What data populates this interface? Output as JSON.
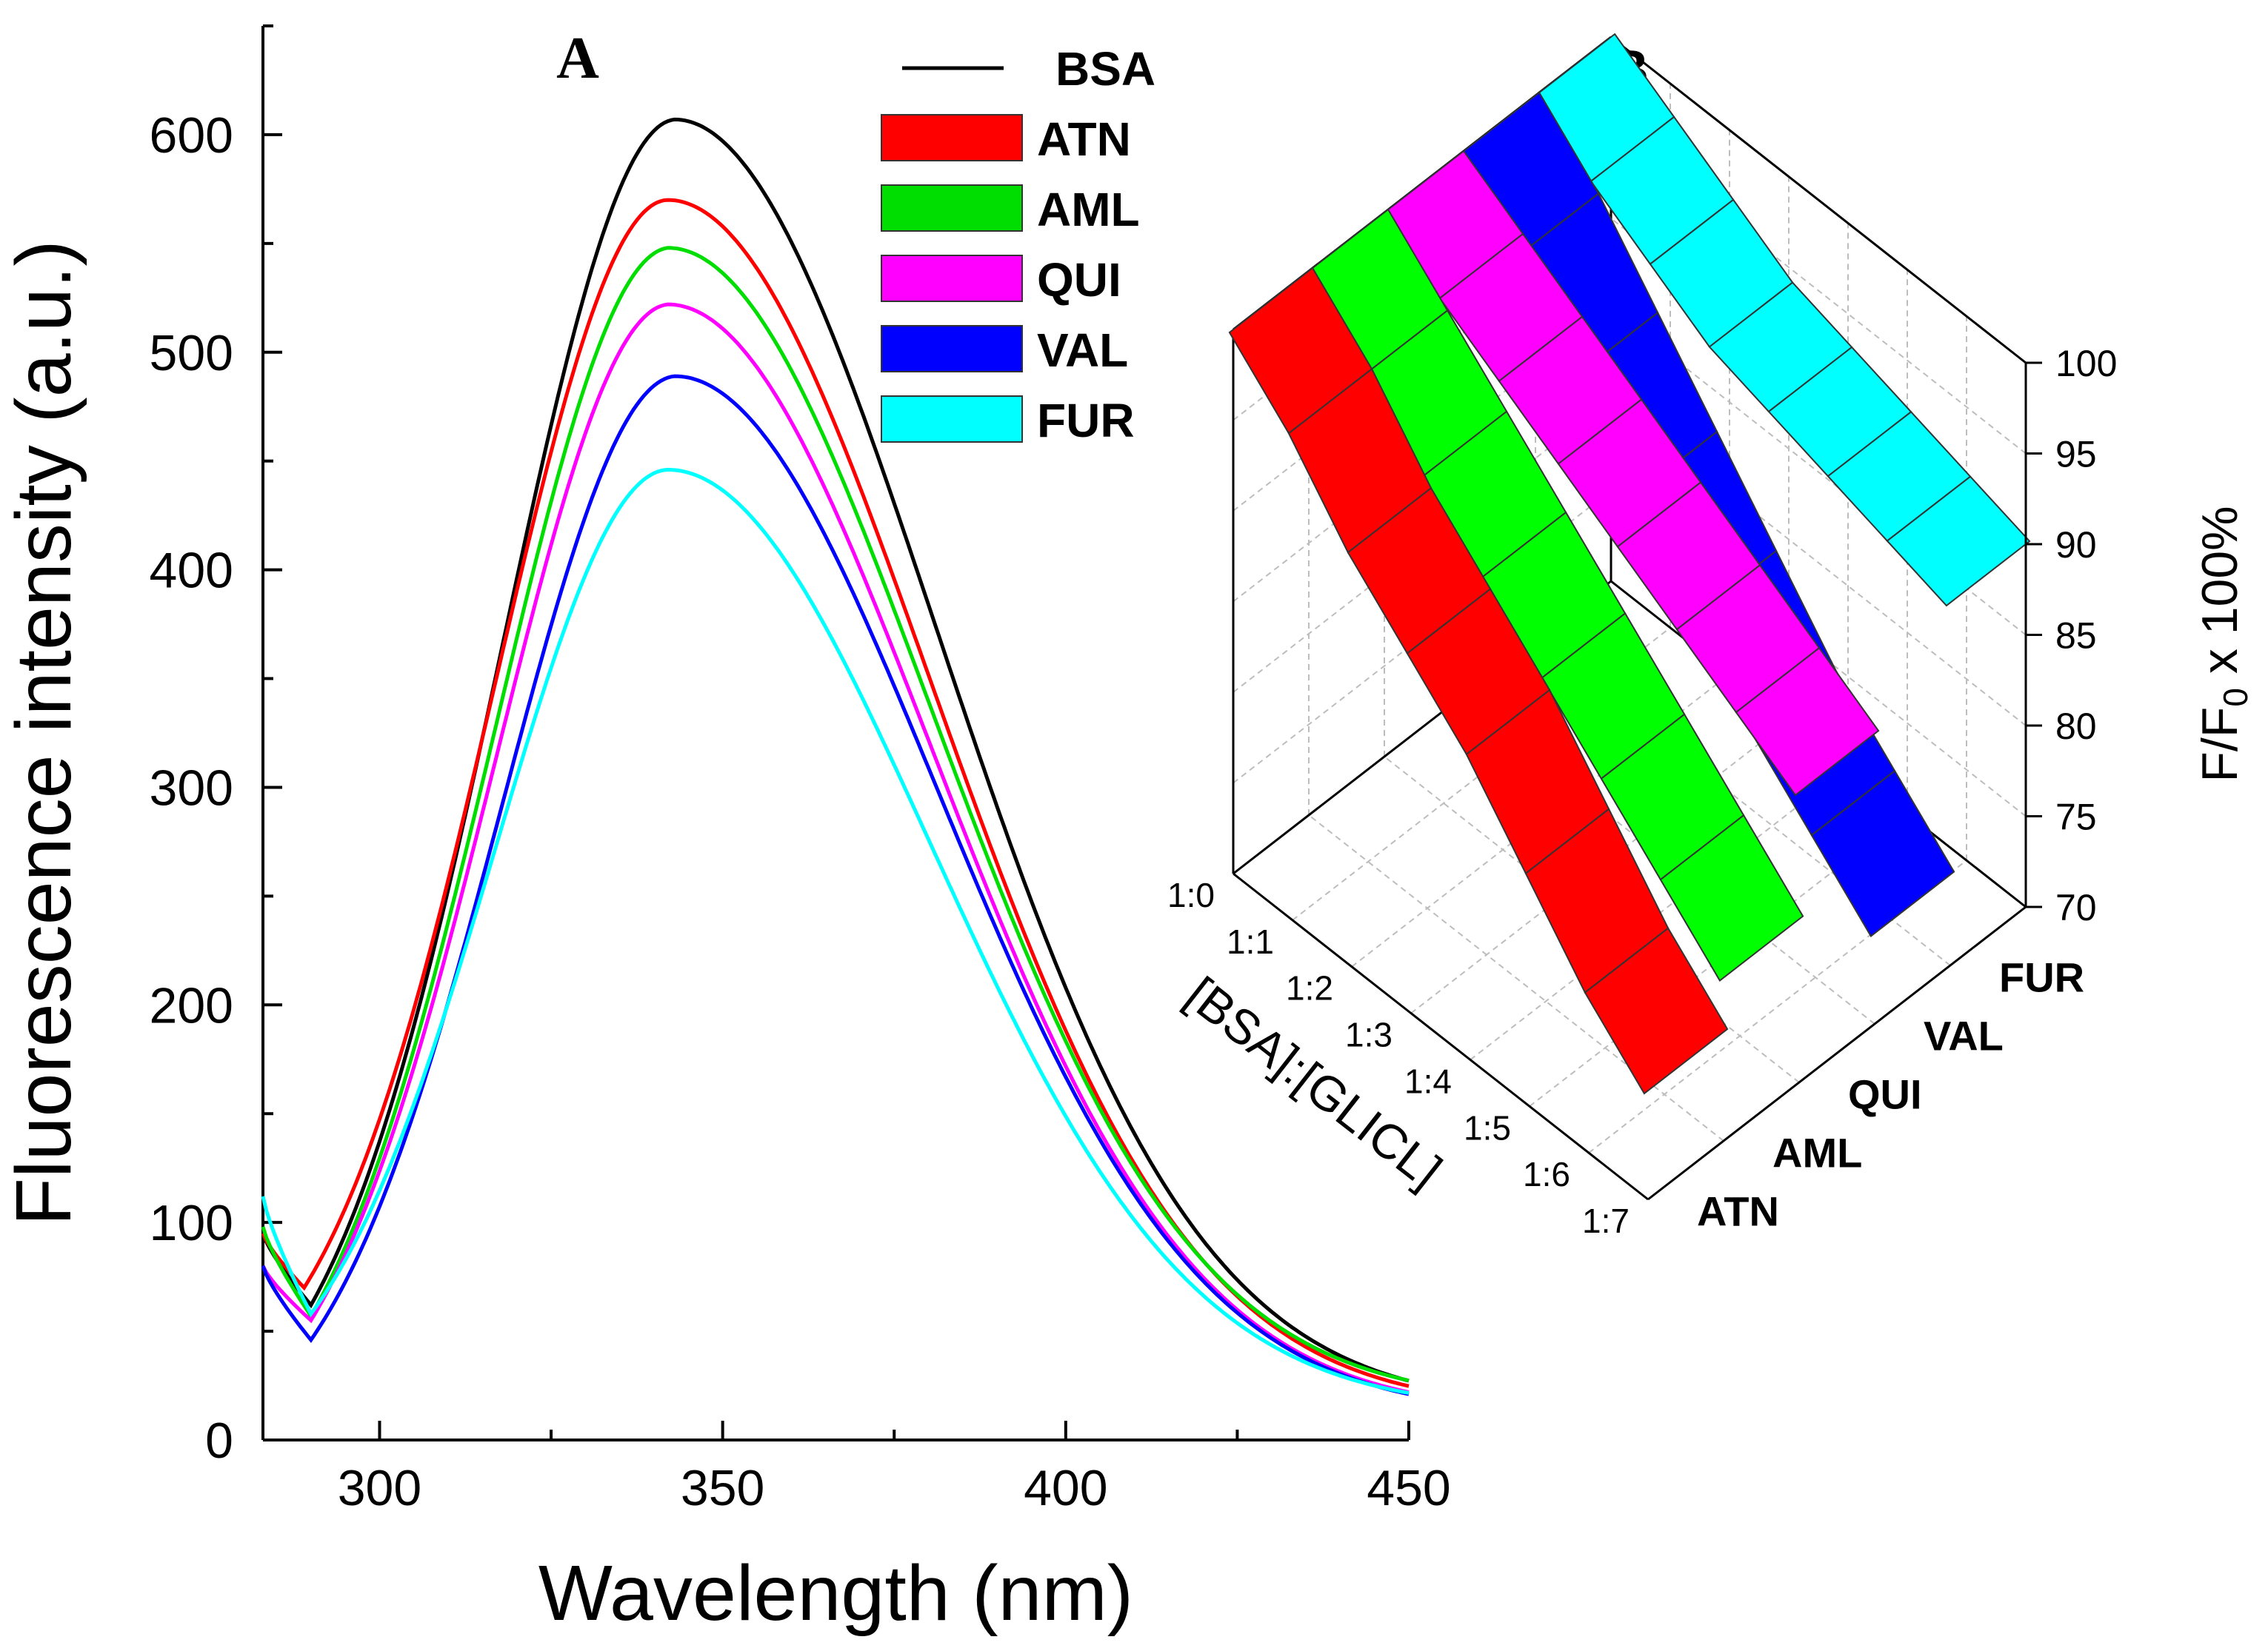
{
  "panel_a_label": "A",
  "panel_b_label": "B",
  "chart_data": [
    {
      "type": "line",
      "panel": "A",
      "title": "",
      "xlabel": "Wavelength (nm)",
      "ylabel": "Fluorescence intensity (a.u.)",
      "xlim": [
        283,
        450
      ],
      "ylim": [
        0,
        650
      ],
      "xticks": [
        300,
        350,
        400,
        450
      ],
      "yticks": [
        0,
        100,
        200,
        300,
        400,
        500,
        600
      ],
      "legend_position": "top-right",
      "series": [
        {
          "name": "BSA",
          "color": "#000000",
          "start": 95,
          "dip_x": 290,
          "dip": 62,
          "peak": 607,
          "peak_x": 343,
          "end": 16
        },
        {
          "name": "ATN",
          "color": "#ff0000",
          "start": 95,
          "dip_x": 289,
          "dip": 70,
          "peak": 570,
          "peak_x": 342,
          "end": 15
        },
        {
          "name": "AML",
          "color": "#00dd00",
          "start": 98,
          "dip_x": 290,
          "dip": 57,
          "peak": 548,
          "peak_x": 342,
          "end": 18
        },
        {
          "name": "QUI",
          "color": "#ff00ff",
          "start": 80,
          "dip_x": 290,
          "dip": 55,
          "peak": 522,
          "peak_x": 342,
          "end": 13
        },
        {
          "name": "VAL",
          "color": "#0000ff",
          "start": 80,
          "dip_x": 290,
          "dip": 46,
          "peak": 489,
          "peak_x": 343,
          "end": 12
        },
        {
          "name": "FUR",
          "color": "#00ffff",
          "start": 112,
          "dip_x": 290,
          "dip": 58,
          "peak": 446,
          "peak_x": 342,
          "end": 14
        }
      ]
    },
    {
      "type": "ribbon3d",
      "panel": "B",
      "title": "",
      "xlabel": "[BSA]:[GLICL]",
      "zlabel_main": "F/F",
      "zlabel_sub": "0",
      "zlabel_tail": "x 100%",
      "ratio_labels": [
        "1:0",
        "1:1",
        "1:2",
        "1:3",
        "1:4",
        "1:5",
        "1:6",
        "1:7"
      ],
      "zlim": [
        70,
        100
      ],
      "zticks": [
        70,
        75,
        80,
        85,
        90,
        95,
        100
      ],
      "series": [
        {
          "name": "ATN",
          "color": "#ff0000",
          "values": [
            100,
            97,
            93,
            90,
            87,
            83,
            79,
            76
          ]
        },
        {
          "name": "AML",
          "color": "#00ff00",
          "values": [
            100,
            97,
            94,
            91,
            88,
            85,
            82,
            79
          ]
        },
        {
          "name": "QUI",
          "color": "#ff00ff",
          "values": [
            100,
            98,
            96,
            94,
            92,
            90,
            88,
            86
          ]
        },
        {
          "name": "VAL",
          "color": "#0000ff",
          "values": [
            100,
            97,
            93,
            89,
            85,
            81,
            78,
            75
          ]
        },
        {
          "name": "FUR",
          "color": "#00ffff",
          "values": [
            100,
            98,
            96,
            94,
            93,
            92,
            91,
            90
          ]
        }
      ]
    }
  ]
}
